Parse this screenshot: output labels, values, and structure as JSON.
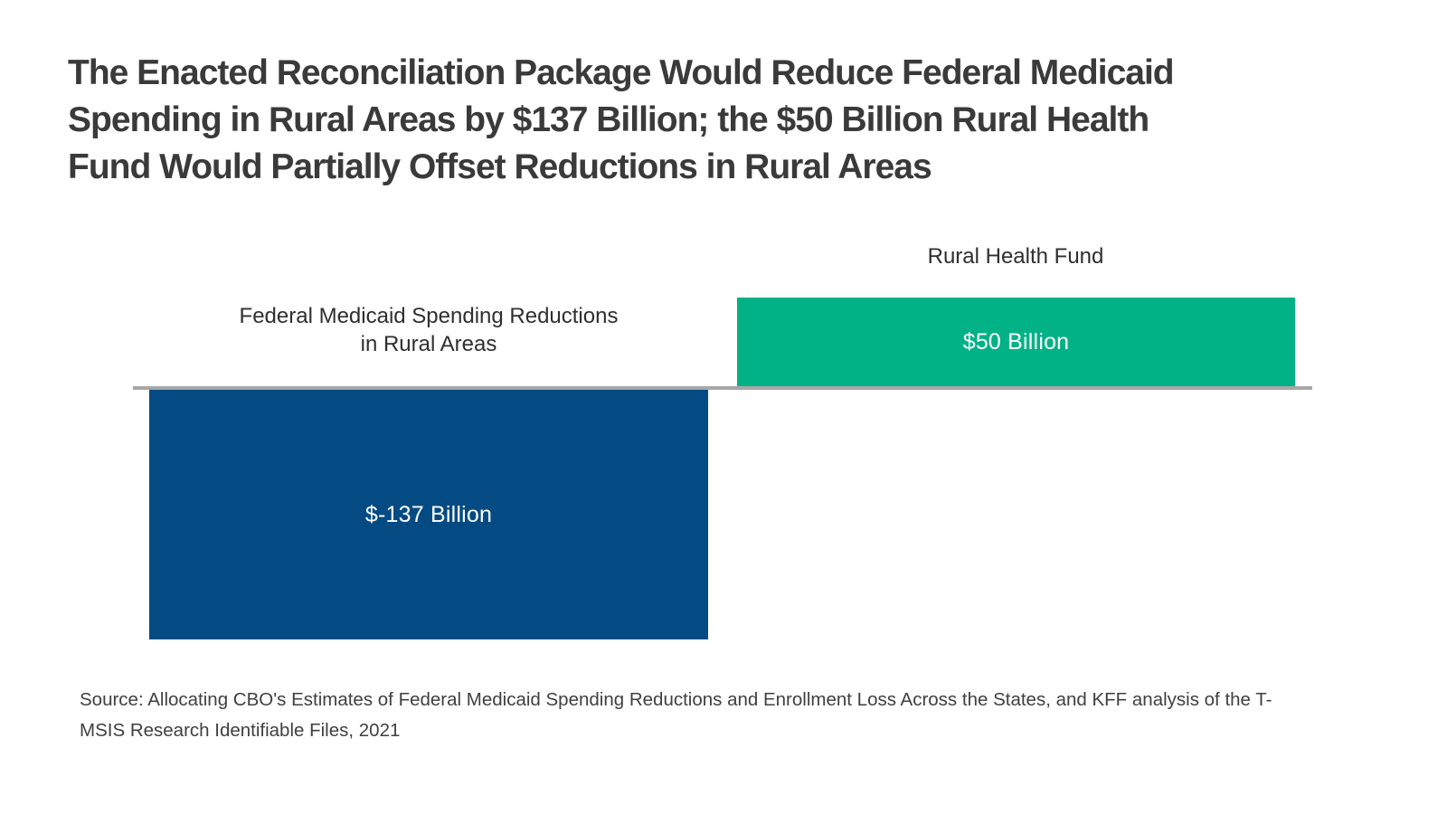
{
  "figure": {
    "title": "The Enacted Reconciliation Package Would Reduce Federal Medicaid Spending in Rural Areas by $137 Billion; the $50 Billion Rural Health Fund Would Partially Offset Reductions in Rural Areas",
    "title_lines": [
      "The Enacted Reconciliation Package Would Reduce Federal Medicaid",
      "Spending in Rural Areas by $137 Billion; the $50 Billion Rural Health",
      "Fund Would Partially Offset Reductions in Rural Areas"
    ],
    "source": "Source: Allocating CBO's Estimates of Federal Medicaid Spending Reductions and Enrollment Loss Across the States, and KFF analysis of the T-MSIS Research Identifiable Files, 2021"
  },
  "chart": {
    "baseline_color": "#a7a7a7",
    "bars": [
      {
        "label": "Federal Medicaid Spending Reductions in Rural Areas",
        "label_lines": [
          "Federal Medicaid Spending Reductions",
          "in Rural Areas"
        ],
        "value": -137,
        "value_label": "$-137 Billion",
        "color": "#044b83",
        "direction": "below-baseline"
      },
      {
        "label": "Rural Health Fund",
        "label_lines": [
          "Rural Health Fund"
        ],
        "value": 50,
        "value_label": "$50 Billion",
        "color": "#00b286",
        "direction": "above-baseline"
      }
    ]
  },
  "chart_data": {
    "type": "bar",
    "orientation": "vertical",
    "categories": [
      "Federal Medicaid Spending Reductions in Rural Areas",
      "Rural Health Fund"
    ],
    "values": [
      -137,
      50
    ],
    "value_labels": [
      "$-137 Billion",
      "$50 Billion"
    ],
    "unit": "billions of U.S. dollars",
    "title": "The Enacted Reconciliation Package Would Reduce Federal Medicaid Spending in Rural Areas by $137 Billion; the $50 Billion Rural Health Fund Would Partially Offset Reductions in Rural Areas",
    "xlabel": "",
    "ylabel": "",
    "ylim": [
      -137,
      50
    ],
    "baseline": 0,
    "grid": false,
    "legend": false,
    "bar_colors": [
      "#044b83",
      "#00b286"
    ],
    "baseline_color": "#a7a7a7",
    "value_label_position": "inside-center",
    "category_label_position": "above-bar",
    "source": "Source: Allocating CBO's Estimates of Federal Medicaid Spending Reductions and Enrollment Loss Across the States, and KFF analysis of the T-MSIS Research Identifiable Files, 2021"
  }
}
